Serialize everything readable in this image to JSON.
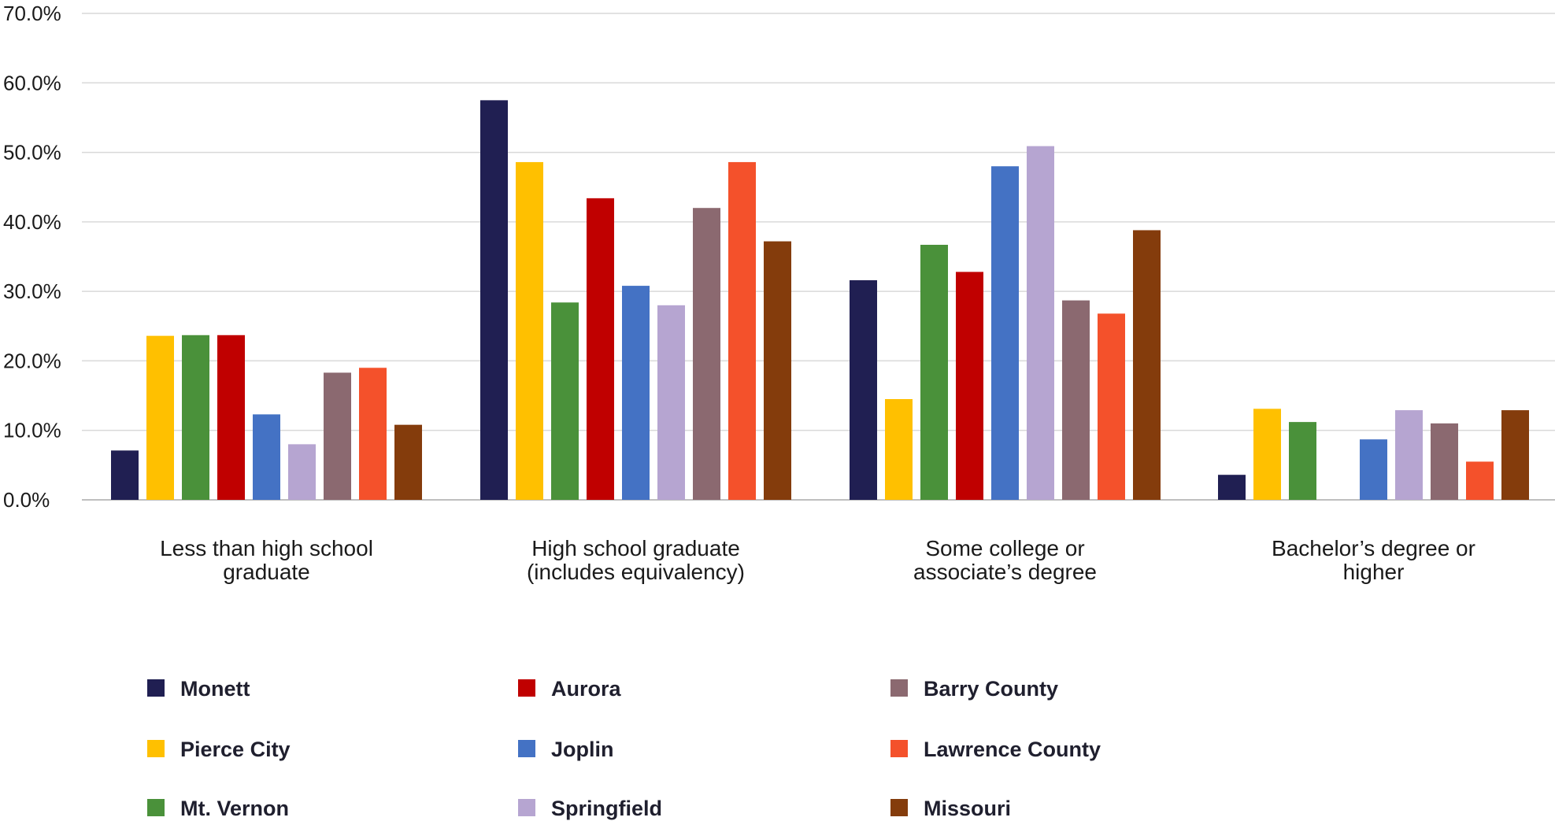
{
  "chart_data": {
    "type": "bar",
    "title": "",
    "xlabel": "",
    "ylabel": "",
    "ylim": [
      0,
      70
    ],
    "yticks": [
      "0.0%",
      "10.0%",
      "20.0%",
      "30.0%",
      "40.0%",
      "50.0%",
      "60.0%",
      "70.0%"
    ],
    "grid": true,
    "legend_position": "bottom",
    "categories": [
      [
        "Less than high school",
        "graduate"
      ],
      [
        "High school graduate",
        "(includes equivalency)"
      ],
      [
        "Some college or",
        "associate’s degree"
      ],
      [
        "Bachelor’s degree or",
        "higher"
      ]
    ],
    "series": [
      {
        "name": "Monett",
        "color": "#201f52",
        "values": [
          7.1,
          57.5,
          31.6,
          3.6
        ]
      },
      {
        "name": "Pierce City",
        "color": "#ffc000",
        "values": [
          23.6,
          48.6,
          14.5,
          13.1
        ]
      },
      {
        "name": "Mt. Vernon",
        "color": "#4a913a",
        "values": [
          23.7,
          28.4,
          36.7,
          11.2
        ]
      },
      {
        "name": "Aurora",
        "color": "#c00000",
        "values": [
          23.7,
          43.4,
          32.8,
          0
        ]
      },
      {
        "name": "Joplin",
        "color": "#4472c4",
        "values": [
          12.3,
          30.8,
          48.0,
          8.7
        ]
      },
      {
        "name": "Springfield",
        "color": "#b6a5d1",
        "values": [
          8.0,
          28.0,
          50.9,
          12.9
        ]
      },
      {
        "name": "Barry County",
        "color": "#8b6970",
        "values": [
          18.3,
          42.0,
          28.7,
          11.0
        ]
      },
      {
        "name": "Lawrence County",
        "color": "#f4512b",
        "values": [
          19.0,
          48.6,
          26.8,
          5.5
        ]
      },
      {
        "name": "Missouri",
        "color": "#843c0c",
        "values": [
          10.8,
          37.2,
          38.8,
          12.9
        ]
      }
    ]
  }
}
